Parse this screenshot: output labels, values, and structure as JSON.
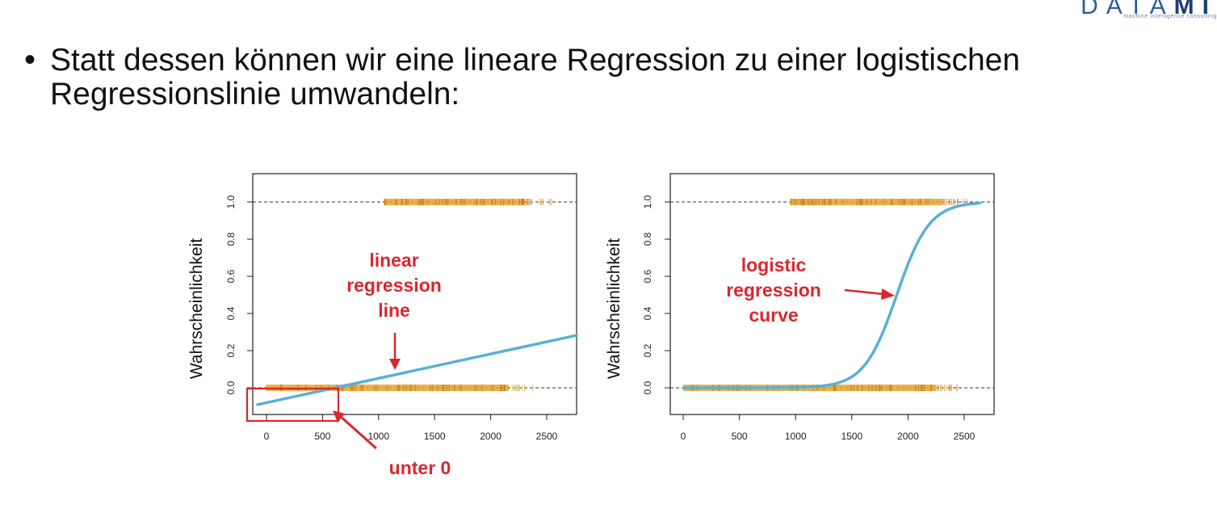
{
  "slide": {
    "bullet": "•",
    "text_line1": "Statt dessen können wir eine lineare Regression zu einer logistischen",
    "text_line2": "Regressionslinie umwandeln:"
  },
  "logo": {
    "text_left": "DATA",
    "text_bold": "MI",
    "tagline": "machine intelligence consulting"
  },
  "colors": {
    "curve": "#5aafd6",
    "points": "#e8a32a",
    "annotation": "#d9272e",
    "dashed": "#333333"
  },
  "chart_data": [
    {
      "type": "scatter",
      "ylabel": "Wahrscheinlichkeit",
      "xlabel": "",
      "xticks": [
        0,
        500,
        1000,
        1500,
        2000,
        2500
      ],
      "yticks": [
        0.0,
        0.2,
        0.4,
        0.6,
        0.8,
        1.0
      ],
      "ytick_labels": [
        "0.0",
        "0.2",
        "0.4",
        "0.6",
        "0.8",
        "1.0"
      ],
      "xlim": [
        -100,
        2750
      ],
      "ylim": [
        -0.14,
        1.1
      ],
      "reference_lines": [
        0,
        1
      ],
      "points_y0_range": [
        0,
        2300
      ],
      "points_y1_range": [
        1050,
        2450
      ],
      "line": {
        "kind": "linear",
        "intercept": -0.08,
        "slope": 0.000131
      },
      "annotation": {
        "text": [
          "linear",
          "regression",
          "line"
        ]
      },
      "highlight": {
        "text": "unter 0",
        "x_range": [
          -170,
          660
        ],
        "y_range": [
          -0.185,
          0.0
        ]
      }
    },
    {
      "type": "scatter",
      "ylabel": "Wahrscheinlichkeit",
      "xlabel": "",
      "xticks": [
        0,
        500,
        1000,
        1500,
        2000,
        2500
      ],
      "yticks": [
        0.0,
        0.2,
        0.4,
        0.6,
        0.8,
        1.0
      ],
      "ytick_labels": [
        "0.0",
        "0.2",
        "0.4",
        "0.6",
        "0.8",
        "1.0"
      ],
      "xlim": [
        -100,
        2750
      ],
      "ylim": [
        -0.14,
        1.1
      ],
      "reference_lines": [
        0,
        1
      ],
      "points_y0_range": [
        0,
        2400
      ],
      "points_y1_range": [
        950,
        2450
      ],
      "line": {
        "kind": "logistic",
        "midpoint": 1900,
        "scale": 145,
        "x_range": [
          0,
          2650
        ]
      },
      "annotation": {
        "text": [
          "logistic",
          "regression",
          "curve"
        ]
      }
    }
  ]
}
